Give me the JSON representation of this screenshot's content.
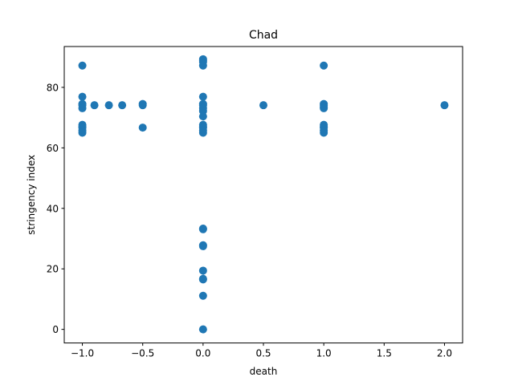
{
  "chart_data": {
    "type": "scatter",
    "title": "Chad",
    "xlabel": "death",
    "ylabel": "stringency index",
    "xlim": [
      -1.15,
      2.15
    ],
    "ylim": [
      -4.5,
      93.5
    ],
    "xticks": [
      -1.0,
      -0.5,
      0.0,
      0.5,
      1.0,
      1.5,
      2.0
    ],
    "xtick_labels": [
      "−1.0",
      "−0.5",
      "0.0",
      "0.5",
      "1.0",
      "1.5",
      "2.0"
    ],
    "yticks": [
      0,
      20,
      40,
      60,
      80
    ],
    "ytick_labels": [
      "0",
      "20",
      "40",
      "60",
      "80"
    ],
    "grid": false,
    "legend": "none",
    "marker_color": "#1f77b4",
    "points": [
      [
        -1.0,
        87.2
      ],
      [
        -1.0,
        76.9
      ],
      [
        -1.0,
        74.5
      ],
      [
        -1.0,
        74.1
      ],
      [
        -1.0,
        73.1
      ],
      [
        -1.0,
        67.6
      ],
      [
        -1.0,
        67.0
      ],
      [
        -1.0,
        66.7
      ],
      [
        -1.0,
        65.7
      ],
      [
        -1.0,
        65.0
      ],
      [
        -0.9,
        74.1
      ],
      [
        -0.78,
        74.1
      ],
      [
        -0.67,
        74.1
      ],
      [
        -0.5,
        74.5
      ],
      [
        -0.5,
        74.1
      ],
      [
        -0.5,
        66.7
      ],
      [
        0.0,
        89.3
      ],
      [
        0.0,
        88.9
      ],
      [
        0.0,
        88.4
      ],
      [
        0.0,
        87.2
      ],
      [
        0.0,
        76.9
      ],
      [
        0.0,
        74.5
      ],
      [
        0.0,
        74.1
      ],
      [
        0.0,
        73.1
      ],
      [
        0.0,
        72.2
      ],
      [
        0.0,
        70.4
      ],
      [
        0.0,
        67.6
      ],
      [
        0.0,
        67.0
      ],
      [
        0.0,
        66.7
      ],
      [
        0.0,
        65.7
      ],
      [
        0.0,
        65.0
      ],
      [
        0.0,
        33.3
      ],
      [
        0.0,
        33.1
      ],
      [
        0.0,
        27.8
      ],
      [
        0.0,
        27.5
      ],
      [
        0.0,
        19.4
      ],
      [
        0.0,
        16.7
      ],
      [
        0.0,
        16.5
      ],
      [
        0.0,
        11.1
      ],
      [
        0.0,
        0.0
      ],
      [
        0.5,
        74.1
      ],
      [
        1.0,
        87.2
      ],
      [
        1.0,
        74.5
      ],
      [
        1.0,
        74.1
      ],
      [
        1.0,
        73.5
      ],
      [
        1.0,
        73.1
      ],
      [
        1.0,
        67.6
      ],
      [
        1.0,
        67.0
      ],
      [
        1.0,
        66.7
      ],
      [
        1.0,
        65.7
      ],
      [
        1.0,
        65.0
      ],
      [
        2.0,
        74.1
      ]
    ]
  }
}
